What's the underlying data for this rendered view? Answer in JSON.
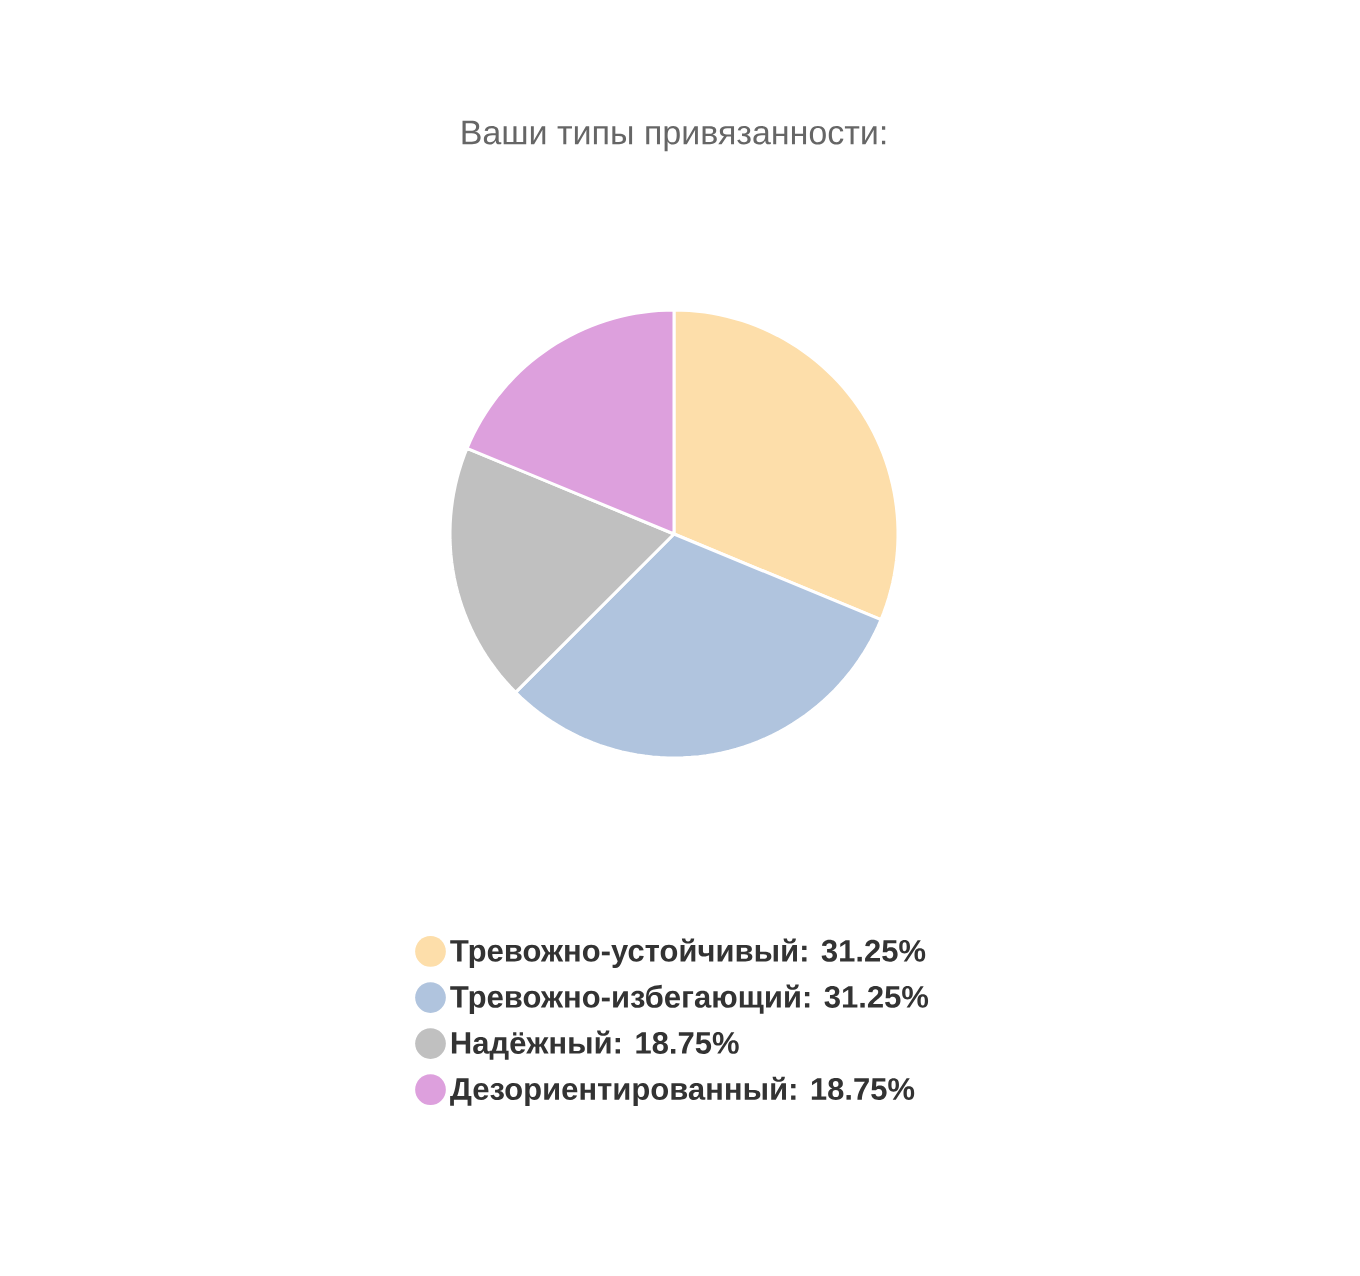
{
  "chart_data": {
    "type": "pie",
    "title": "Ваши типы привязанности:",
    "categories": [
      "Тревожно-устойчивый: 31.25%",
      "Тревожно-избегающий: 31.25%",
      "Надёжный: 18.75%",
      "Дезориентированный: 18.75%"
    ],
    "values": [
      31.25,
      31.25,
      18.75,
      18.75
    ],
    "colors": [
      "#fddeaa",
      "#b0c4de",
      "#c0c0c0",
      "#dda0dd"
    ],
    "legend": "bottom"
  }
}
